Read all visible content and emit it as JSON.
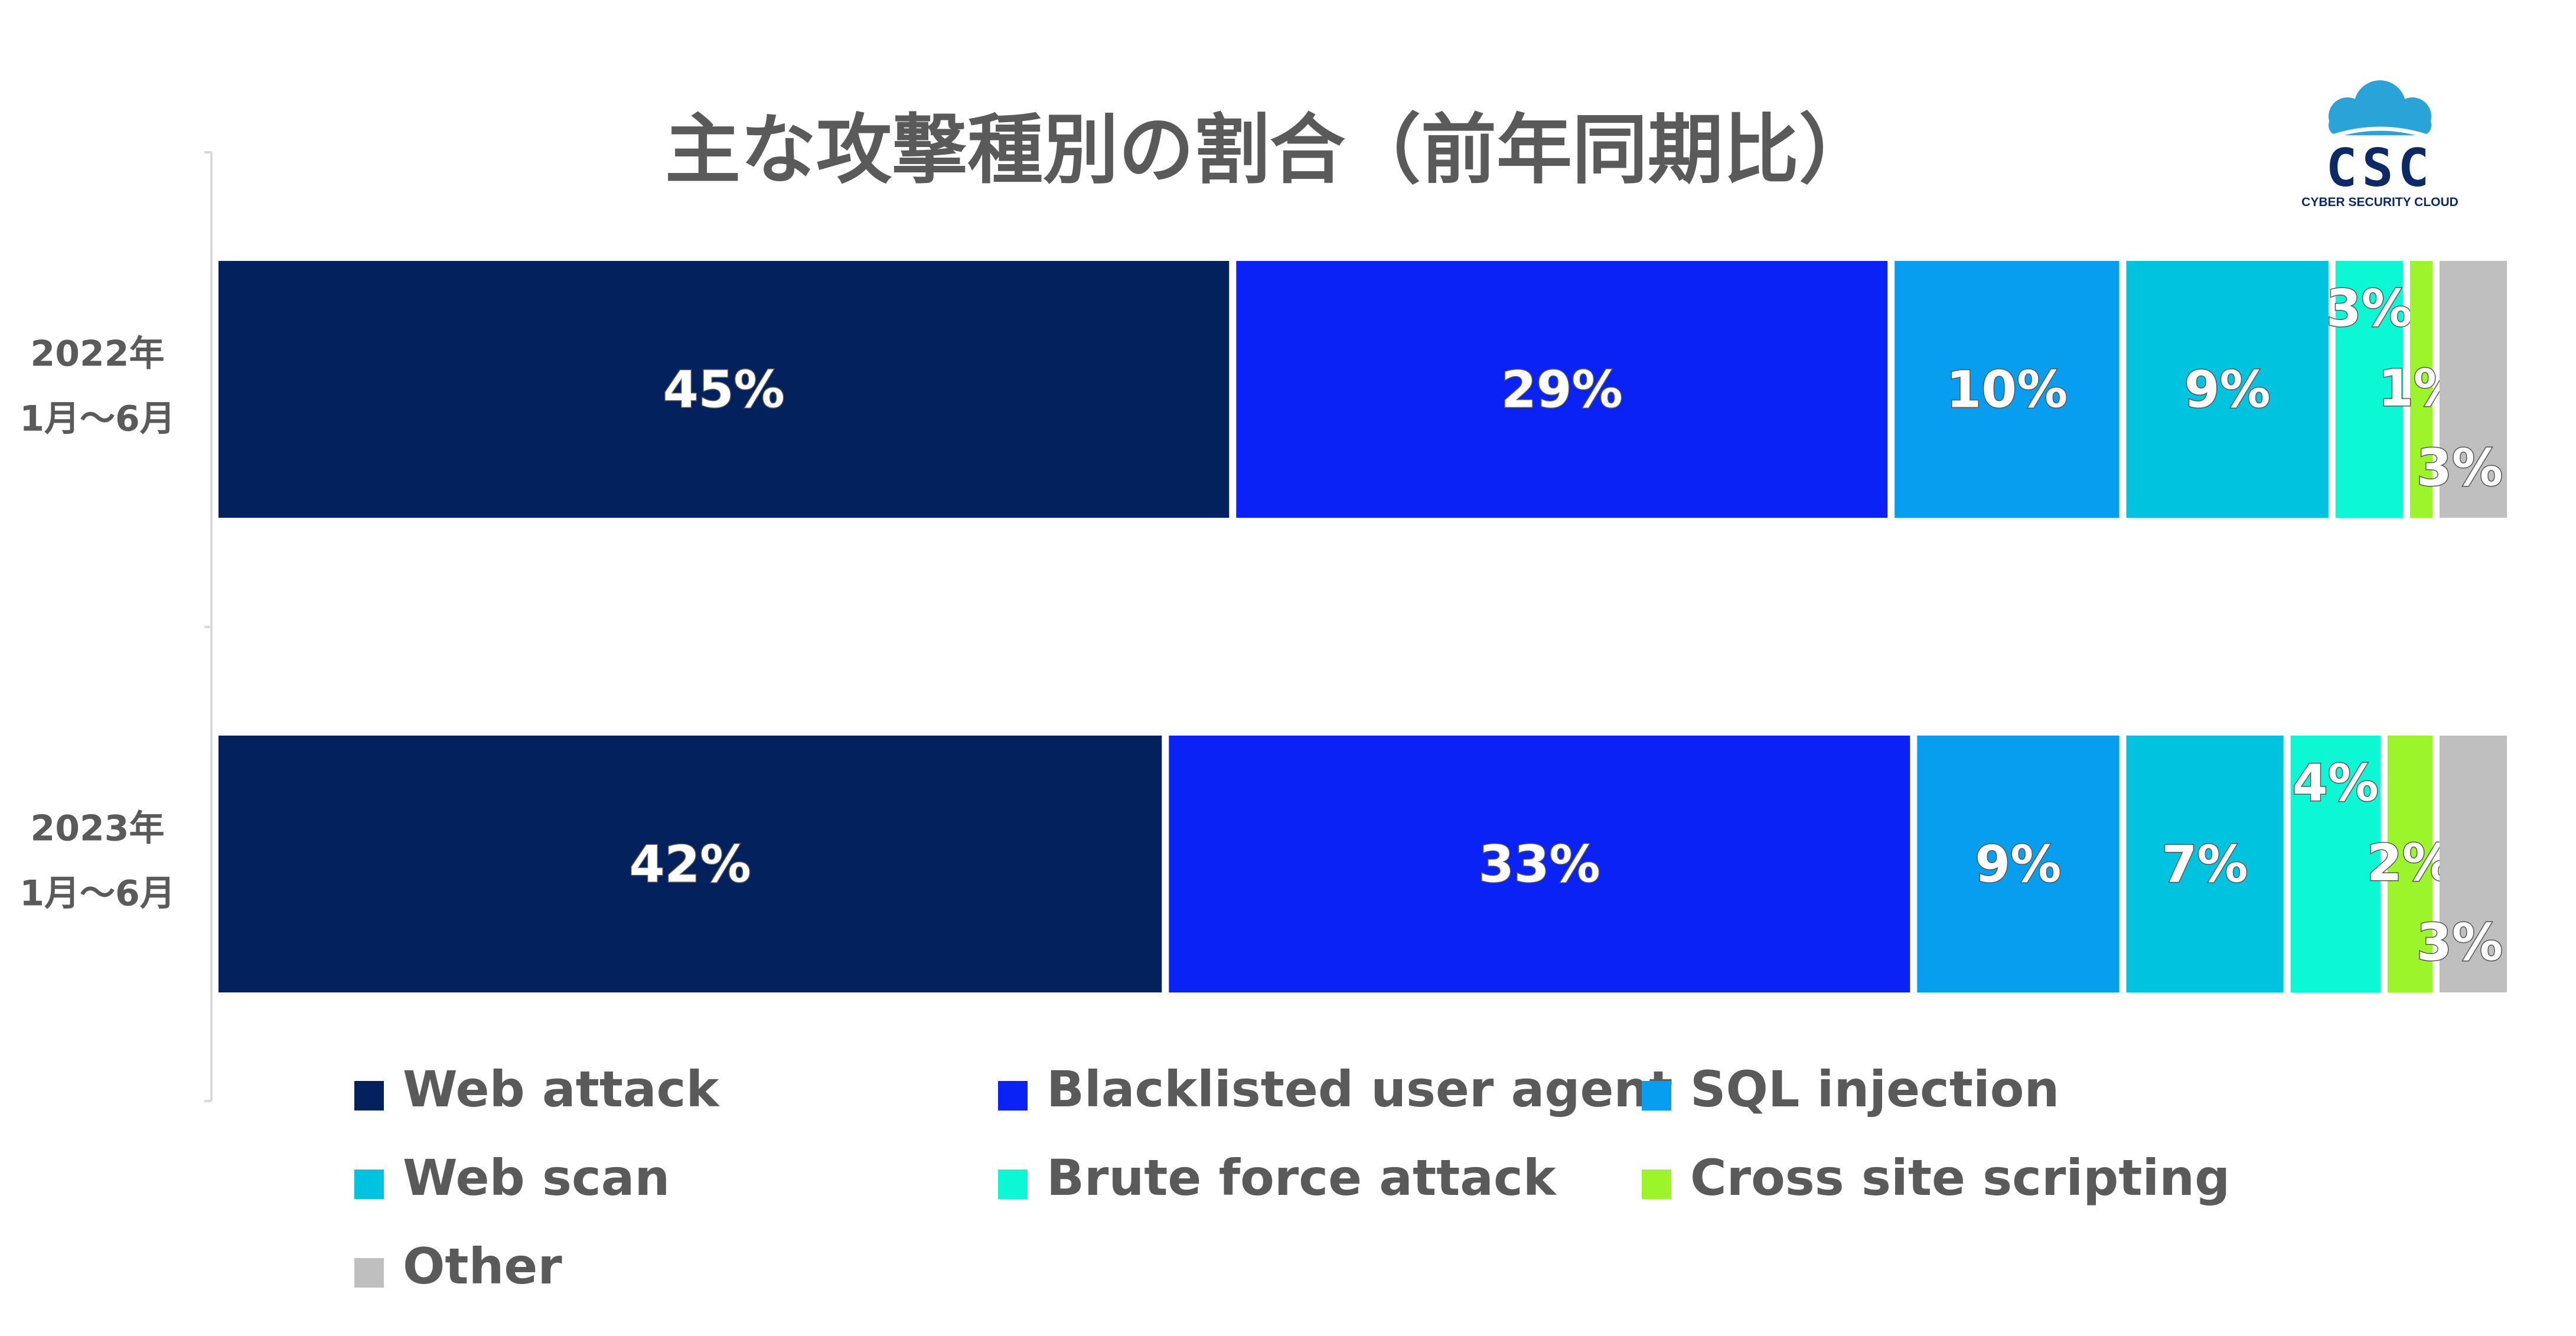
{
  "title": "主な攻撃種別の割合（前年同期比）",
  "logo": {
    "main": "CSC",
    "sub": "CYBER SECURITY CLOUD",
    "cloud_color": "#29a3d8"
  },
  "chart_data": {
    "type": "bar",
    "orientation": "horizontal",
    "stacked": true,
    "title": "主な攻撃種別の割合（前年同期比）",
    "categories": [
      {
        "year": "2022年",
        "period": "1月～6月"
      },
      {
        "year": "2023年",
        "period": "1月～6月"
      }
    ],
    "series": [
      {
        "name": "Web attack",
        "color": "#03215c",
        "values": [
          45,
          42
        ],
        "labels": [
          "45%",
          "42%"
        ]
      },
      {
        "name": "Blacklisted user agent",
        "color": "#0a22f5",
        "values": [
          29,
          33
        ],
        "labels": [
          "29%",
          "33%"
        ]
      },
      {
        "name": "SQL injection",
        "color": "#079ef0",
        "values": [
          10,
          9
        ],
        "labels": [
          "10%",
          "9%"
        ]
      },
      {
        "name": "Web scan",
        "color": "#00c4df",
        "values": [
          9,
          7
        ],
        "labels": [
          "9%",
          "7%"
        ]
      },
      {
        "name": "Brute force attack",
        "color": "#0cf8d4",
        "values": [
          3,
          4
        ],
        "labels": [
          "3%",
          "4%"
        ]
      },
      {
        "name": "Cross site scripting",
        "color": "#9cf52a",
        "values": [
          1,
          2
        ],
        "labels": [
          "1%",
          "2%"
        ]
      },
      {
        "name": "Other",
        "color": "#bfbfbf",
        "values": [
          3,
          3
        ],
        "labels": [
          "3%",
          "3%"
        ]
      }
    ],
    "xlim": [
      0,
      100
    ],
    "grid": false,
    "legend": "bottom"
  }
}
